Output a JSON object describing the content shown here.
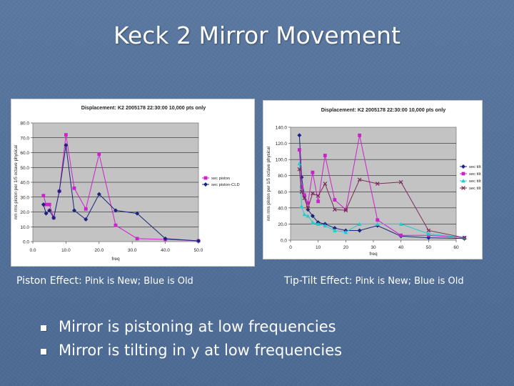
{
  "slide": {
    "title": "Keck 2 Mirror Movement",
    "caption_piston_lead": "Piston Effect:",
    "caption_piston_rest": " Pink is New; Blue is Old",
    "caption_tilt_lead": "Tip-Tilt Effect:",
    "caption_tilt_rest": " Pink is New; Blue is Old",
    "bullets": [
      "Mirror is pistoning at low frequencies",
      "Mirror is tilting in y at low frequencies"
    ]
  },
  "chart_data": [
    {
      "type": "line",
      "title": "Displacement:  K2 2005178 22:30:00 10,000 pts only",
      "xlabel": "freq",
      "ylabel": "nm rms piston per 1/5 octave physical",
      "xlim": [
        0,
        50
      ],
      "ylim": [
        0,
        80
      ],
      "xticks": [
        "0.0",
        "10.0",
        "20.0",
        "30.0",
        "40.0",
        "50.0"
      ],
      "yticks": [
        "0.0",
        "10.0",
        "20.0",
        "30.0",
        "40.0",
        "50.0",
        "60.0",
        "70.0",
        "80.0"
      ],
      "grid": true,
      "legend_position": "right",
      "series": [
        {
          "name": "sec piston",
          "color": "#cc22cc",
          "marker": "square",
          "points": [
            [
              3.2,
              31
            ],
            [
              4,
              25
            ],
            [
              5,
              25
            ],
            [
              6.3,
              16
            ],
            [
              8,
              34
            ],
            [
              10,
              72
            ],
            [
              12.5,
              36
            ],
            [
              16,
              22
            ],
            [
              20,
              59
            ],
            [
              25,
              11
            ],
            [
              31.5,
              2
            ],
            [
              40,
              1.5
            ],
            [
              50,
              0.5
            ]
          ]
        },
        {
          "name": "sec piston-CLD",
          "color": "#1a237e",
          "marker": "diamond",
          "points": [
            [
              3.2,
              25
            ],
            [
              4,
              19
            ],
            [
              5,
              21
            ],
            [
              6.3,
              16
            ],
            [
              8,
              34
            ],
            [
              10,
              65
            ],
            [
              12.5,
              21
            ],
            [
              16,
              15
            ],
            [
              20,
              32
            ],
            [
              25,
              21
            ],
            [
              31.5,
              19
            ],
            [
              40,
              2
            ],
            [
              50,
              0.5
            ]
          ]
        }
      ]
    },
    {
      "type": "line",
      "title": "Displacement:  K2 2005178 22:30:00 10,000 pts only",
      "xlabel": "freq",
      "ylabel": "nm rms piston per 1/5 octave physical",
      "xlim": [
        0,
        60
      ],
      "ylim": [
        0,
        140
      ],
      "xticks": [
        "0",
        "10",
        "20",
        "30",
        "40",
        "50",
        "60"
      ],
      "yticks": [
        "0.0",
        "20.0",
        "40.0",
        "60.0",
        "80.0",
        "100.0",
        "120.0",
        "140.0"
      ],
      "grid": true,
      "legend_position": "right",
      "series": [
        {
          "name": "sec tilt x",
          "color": "#1a237e",
          "marker": "diamond",
          "points": [
            [
              3.2,
              130
            ],
            [
              4,
              78
            ],
            [
              5,
              55
            ],
            [
              6.3,
              38
            ],
            [
              8,
              30
            ],
            [
              10,
              22
            ],
            [
              12.5,
              20
            ],
            [
              16,
              15
            ],
            [
              20,
              12
            ],
            [
              25,
              12
            ],
            [
              31.5,
              18
            ],
            [
              40,
              5
            ],
            [
              50,
              3
            ],
            [
              63,
              2
            ]
          ]
        },
        {
          "name": "sec tilt y",
          "color": "#cc22cc",
          "marker": "square",
          "points": [
            [
              3.2,
              112
            ],
            [
              4,
              66
            ],
            [
              5,
              56
            ],
            [
              6.3,
              46
            ],
            [
              8,
              84
            ],
            [
              10,
              48
            ],
            [
              12.5,
              105
            ],
            [
              16,
              50
            ],
            [
              20,
              38
            ],
            [
              25,
              130
            ],
            [
              31.5,
              25
            ],
            [
              40,
              6
            ],
            [
              50,
              6
            ],
            [
              63,
              3
            ]
          ]
        },
        {
          "name": "sec tilt x -CLD",
          "color": "#22cccc",
          "marker": "triangle",
          "points": [
            [
              3.2,
              95
            ],
            [
              4,
              42
            ],
            [
              5,
              32
            ],
            [
              6.3,
              30
            ],
            [
              8,
              22
            ],
            [
              10,
              20
            ],
            [
              12.5,
              18
            ],
            [
              16,
              12
            ],
            [
              20,
              10
            ],
            [
              25,
              20
            ],
            [
              31.5,
              20
            ],
            [
              40,
              20
            ],
            [
              50,
              8
            ],
            [
              63,
              3
            ]
          ]
        },
        {
          "name": "sec tilt y -CLD",
          "color": "#7a2a5a",
          "marker": "x",
          "points": [
            [
              3.2,
              88
            ],
            [
              4,
              60
            ],
            [
              5,
              52
            ],
            [
              6.3,
              40
            ],
            [
              8,
              58
            ],
            [
              10,
              55
            ],
            [
              12.5,
              70
            ],
            [
              16,
              38
            ],
            [
              20,
              37
            ],
            [
              25,
              75
            ],
            [
              31.5,
              70
            ],
            [
              40,
              72
            ],
            [
              50,
              12
            ],
            [
              63,
              3
            ]
          ]
        }
      ]
    }
  ]
}
